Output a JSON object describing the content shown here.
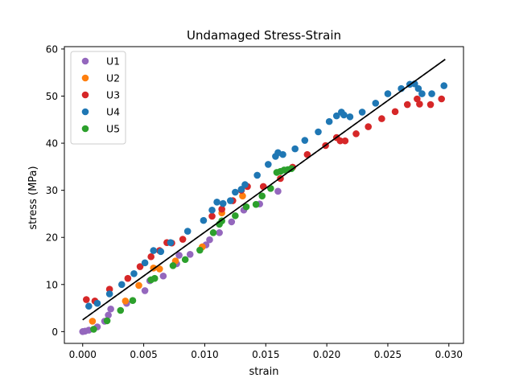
{
  "chart_data": {
    "type": "scatter",
    "title": "Undamaged Stress-Strain",
    "xlabel": "strain",
    "ylabel": "stress (MPa)",
    "xlim": [
      -0.0015,
      0.0312
    ],
    "ylim": [
      -2.5,
      60.5
    ],
    "xticks": [
      0.0,
      0.005,
      0.01,
      0.015,
      0.02,
      0.025,
      0.03
    ],
    "xtick_labels": [
      "0.000",
      "0.005",
      "0.010",
      "0.015",
      "0.020",
      "0.025",
      "0.030"
    ],
    "yticks": [
      0,
      10,
      20,
      30,
      40,
      50,
      60
    ],
    "ytick_labels": [
      "0",
      "10",
      "20",
      "30",
      "40",
      "50",
      "60"
    ],
    "grid": false,
    "legend_position": "top-left",
    "series": [
      {
        "name": "U1",
        "color": "#9467bd",
        "points": [
          [
            0.0,
            0.0
          ],
          [
            0.0002,
            0.1
          ],
          [
            0.0005,
            0.3
          ],
          [
            0.0012,
            1.0
          ],
          [
            0.0018,
            2.2
          ],
          [
            0.0021,
            3.5
          ],
          [
            0.0023,
            4.8
          ],
          [
            0.0036,
            6.0
          ],
          [
            0.0051,
            8.7
          ],
          [
            0.0055,
            10.8
          ],
          [
            0.0066,
            11.8
          ],
          [
            0.0077,
            14.4
          ],
          [
            0.0079,
            16.2
          ],
          [
            0.0088,
            16.4
          ],
          [
            0.0101,
            18.4
          ],
          [
            0.0104,
            19.5
          ],
          [
            0.0112,
            21.0
          ],
          [
            0.0122,
            23.3
          ],
          [
            0.0132,
            25.8
          ],
          [
            0.0145,
            27.1
          ],
          [
            0.016,
            29.8
          ]
        ]
      },
      {
        "name": "U2",
        "color": "#ff7f0e",
        "points": [
          [
            0.0008,
            2.2
          ],
          [
            0.0035,
            6.5
          ],
          [
            0.0046,
            9.8
          ],
          [
            0.0058,
            13.5
          ],
          [
            0.0063,
            13.3
          ],
          [
            0.0076,
            15.0
          ],
          [
            0.0098,
            18.0
          ],
          [
            0.0114,
            25.2
          ],
          [
            0.0131,
            28.8
          ]
        ]
      },
      {
        "name": "U3",
        "color": "#d62728",
        "points": [
          [
            0.0003,
            6.8
          ],
          [
            0.001,
            6.5
          ],
          [
            0.0022,
            9.0
          ],
          [
            0.0037,
            11.3
          ],
          [
            0.0047,
            13.8
          ],
          [
            0.0056,
            15.9
          ],
          [
            0.0063,
            17.2
          ],
          [
            0.0069,
            18.9
          ],
          [
            0.0073,
            18.8
          ],
          [
            0.0082,
            19.6
          ],
          [
            0.0106,
            24.5
          ],
          [
            0.0114,
            26.0
          ],
          [
            0.0123,
            27.8
          ],
          [
            0.013,
            30.0
          ],
          [
            0.0135,
            30.8
          ],
          [
            0.0148,
            30.8
          ],
          [
            0.0162,
            32.5
          ],
          [
            0.0172,
            34.9
          ],
          [
            0.0184,
            37.6
          ],
          [
            0.0199,
            39.5
          ],
          [
            0.0208,
            41.2
          ],
          [
            0.0211,
            40.5
          ],
          [
            0.0215,
            40.5
          ],
          [
            0.0224,
            42.0
          ],
          [
            0.0234,
            43.5
          ],
          [
            0.0245,
            45.2
          ],
          [
            0.0256,
            46.7
          ],
          [
            0.0266,
            48.2
          ],
          [
            0.0274,
            49.4
          ],
          [
            0.0276,
            48.3
          ],
          [
            0.0285,
            48.2
          ],
          [
            0.0294,
            49.4
          ]
        ]
      },
      {
        "name": "U4",
        "color": "#1f77b4",
        "points": [
          [
            0.0005,
            5.4
          ],
          [
            0.0012,
            6.0
          ],
          [
            0.0022,
            8.0
          ],
          [
            0.0032,
            10.0
          ],
          [
            0.0042,
            12.3
          ],
          [
            0.0051,
            14.6
          ],
          [
            0.0058,
            17.2
          ],
          [
            0.0064,
            17.0
          ],
          [
            0.0072,
            18.9
          ],
          [
            0.0086,
            21.3
          ],
          [
            0.0099,
            23.6
          ],
          [
            0.0106,
            25.8
          ],
          [
            0.011,
            27.5
          ],
          [
            0.0115,
            27.2
          ],
          [
            0.0121,
            27.8
          ],
          [
            0.0125,
            29.6
          ],
          [
            0.013,
            30.2
          ],
          [
            0.0133,
            31.2
          ],
          [
            0.0143,
            33.2
          ],
          [
            0.0152,
            35.5
          ],
          [
            0.0158,
            37.2
          ],
          [
            0.016,
            38.0
          ],
          [
            0.0164,
            37.6
          ],
          [
            0.0174,
            38.8
          ],
          [
            0.0182,
            40.6
          ],
          [
            0.0193,
            42.4
          ],
          [
            0.0202,
            44.6
          ],
          [
            0.0208,
            45.8
          ],
          [
            0.0212,
            46.6
          ],
          [
            0.0214,
            46.0
          ],
          [
            0.0219,
            45.6
          ],
          [
            0.0229,
            46.6
          ],
          [
            0.024,
            48.5
          ],
          [
            0.025,
            50.5
          ],
          [
            0.0261,
            51.6
          ],
          [
            0.0268,
            52.5
          ],
          [
            0.0272,
            52.6
          ],
          [
            0.0275,
            51.6
          ],
          [
            0.0278,
            50.5
          ],
          [
            0.0286,
            50.5
          ],
          [
            0.0296,
            52.2
          ]
        ]
      },
      {
        "name": "U5",
        "color": "#2ca02c",
        "points": [
          [
            0.0009,
            0.5
          ],
          [
            0.002,
            2.3
          ],
          [
            0.0031,
            4.5
          ],
          [
            0.0041,
            6.6
          ],
          [
            0.0056,
            11.0
          ],
          [
            0.0059,
            11.3
          ],
          [
            0.0074,
            14.0
          ],
          [
            0.0084,
            15.3
          ],
          [
            0.0096,
            17.3
          ],
          [
            0.0107,
            21.0
          ],
          [
            0.0112,
            22.8
          ],
          [
            0.0114,
            23.5
          ],
          [
            0.0125,
            24.6
          ],
          [
            0.0134,
            26.5
          ],
          [
            0.0142,
            27.0
          ],
          [
            0.0147,
            28.8
          ],
          [
            0.0154,
            30.4
          ],
          [
            0.0159,
            33.8
          ],
          [
            0.0162,
            34.0
          ],
          [
            0.0165,
            34.3
          ],
          [
            0.0168,
            34.4
          ],
          [
            0.0171,
            34.6
          ]
        ]
      }
    ],
    "fit_line": {
      "color": "#000000",
      "style": "solid-with-dashed-overlay",
      "x": [
        0.0,
        0.0297
      ],
      "y": [
        2.5,
        57.8
      ]
    }
  }
}
